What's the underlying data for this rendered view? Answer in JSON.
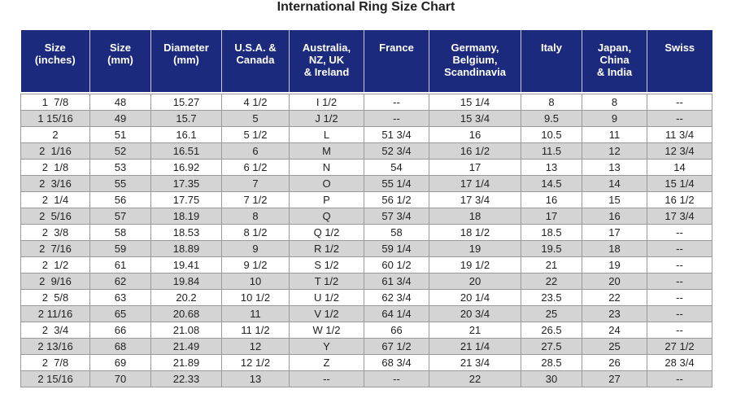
{
  "title": "International Ring Size Chart",
  "table": {
    "header": [
      [
        "Size",
        "(inches)"
      ],
      [
        "Size",
        "(mm)"
      ],
      [
        "Diameter",
        "(mm)"
      ],
      [
        "U.S.A. &",
        "Canada"
      ],
      [
        "Australia,",
        "NZ, UK",
        "& Ireland"
      ],
      [
        "France"
      ],
      [
        "Germany,",
        "Belgium,",
        "Scandinavia"
      ],
      [
        "Italy"
      ],
      [
        "Japan,",
        "China",
        "& India"
      ],
      [
        "Swiss"
      ]
    ],
    "rows": [
      [
        "1  7/8",
        "48",
        "15.27",
        "4 1/2",
        "I 1/2",
        "--",
        "15 1/4",
        "8",
        "8",
        "--"
      ],
      [
        "1 15/16",
        "49",
        "15.7",
        "5",
        "J 1/2",
        "--",
        "15 3/4",
        "9.5",
        "9",
        "--"
      ],
      [
        "2",
        "51",
        "16.1",
        "5 1/2",
        "L",
        "51 3/4",
        "16",
        "10.5",
        "11",
        "11 3/4"
      ],
      [
        "2  1/16",
        "52",
        "16.51",
        "6",
        "M",
        "52 3/4",
        "16 1/2",
        "11.5",
        "12",
        "12 3/4"
      ],
      [
        "2  1/8",
        "53",
        "16.92",
        "6 1/2",
        "N",
        "54",
        "17",
        "13",
        "13",
        "14"
      ],
      [
        "2  3/16",
        "55",
        "17.35",
        "7",
        "O",
        "55 1/4",
        "17 1/4",
        "14.5",
        "14",
        "15 1/4"
      ],
      [
        "2  1/4",
        "56",
        "17.75",
        "7 1/2",
        "P",
        "56 1/2",
        "17 3/4",
        "16",
        "15",
        "16 1/2"
      ],
      [
        "2  5/16",
        "57",
        "18.19",
        "8",
        "Q",
        "57 3/4",
        "18",
        "17",
        "16",
        "17 3/4"
      ],
      [
        "2  3/8",
        "58",
        "18.53",
        "8 1/2",
        "Q 1/2",
        "58",
        "18 1/2",
        "18.5",
        "17",
        "--"
      ],
      [
        "2  7/16",
        "59",
        "18.89",
        "9",
        "R 1/2",
        "59 1/4",
        "19",
        "19.5",
        "18",
        "--"
      ],
      [
        "2  1/2",
        "61",
        "19.41",
        "9 1/2",
        "S 1/2",
        "60 1/2",
        "19 1/2",
        "21",
        "19",
        "--"
      ],
      [
        "2  9/16",
        "62",
        "19.84",
        "10",
        "T 1/2",
        "61 3/4",
        "20",
        "22",
        "20",
        "--"
      ],
      [
        "2  5/8",
        "63",
        "20.2",
        "10 1/2",
        "U 1/2",
        "62 3/4",
        "20 1/4",
        "23.5",
        "22",
        "--"
      ],
      [
        "2 11/16",
        "65",
        "20.68",
        "11",
        "V 1/2",
        "64 1/4",
        "20 3/4",
        "25",
        "23",
        "--"
      ],
      [
        "2  3/4",
        "66",
        "21.08",
        "11 1/2",
        "W 1/2",
        "66",
        "21",
        "26.5",
        "24",
        "--"
      ],
      [
        "2 13/16",
        "68",
        "21.49",
        "12",
        "Y",
        "67 1/2",
        "21 1/4",
        "27.5",
        "25",
        "27 1/2"
      ],
      [
        "2  7/8",
        "69",
        "21.89",
        "12 1/2",
        "Z",
        "68 3/4",
        "21 3/4",
        "28.5",
        "26",
        "28 3/4"
      ],
      [
        "2 15/16",
        "70",
        "22.33",
        "13",
        "--",
        "--",
        "22",
        "30",
        "27",
        "--"
      ]
    ]
  }
}
